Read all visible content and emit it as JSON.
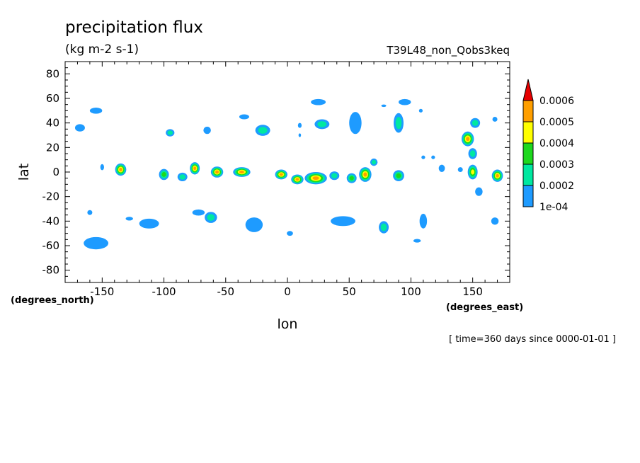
{
  "title": "precipitation flux",
  "units": "(kg m-2 s-1)",
  "experiment": "T39L48_non_Qobs3keq",
  "time_note": "[ time=360 days since 0000-01-01 ]",
  "chart_data": {
    "type": "heatmap",
    "xlabel": "lon",
    "ylabel": "lat",
    "x_units": "(degrees_east)",
    "y_units": "(degrees_north)",
    "xlim": [
      -180,
      180
    ],
    "ylim": [
      -90,
      90
    ],
    "x_ticks": [
      -150,
      -100,
      -50,
      0,
      50,
      100,
      150
    ],
    "x_tick_labels": [
      "-150",
      "-100",
      "-50",
      "0",
      "50",
      "100",
      "150"
    ],
    "y_ticks": [
      -80,
      -60,
      -40,
      -20,
      0,
      20,
      40,
      60,
      80
    ],
    "y_tick_labels": [
      "-80",
      "-60",
      "-40",
      "-20",
      "0",
      "20",
      "40",
      "60",
      "80"
    ],
    "colorbar": {
      "levels": [
        0.0001,
        0.0002,
        0.0003,
        0.0004,
        0.0005,
        0.0006
      ],
      "labels": [
        "1e-04",
        "0.0002",
        "0.0003",
        "0.0004",
        "0.0005",
        "0.0006"
      ],
      "colors": [
        "#1e9bff",
        "#00e8a0",
        "#1ed81e",
        "#ffff00",
        "#ff9f00",
        "#e60000"
      ]
    },
    "cells": [
      {
        "lon": -135,
        "lat": 2,
        "rx": 4.5,
        "ry": 5,
        "level": 5
      },
      {
        "lon": -75,
        "lat": 3,
        "rx": 4,
        "ry": 5,
        "level": 5
      },
      {
        "lon": -57,
        "lat": 0,
        "rx": 5,
        "ry": 4.5,
        "level": 5
      },
      {
        "lon": -37,
        "lat": 0,
        "rx": 7,
        "ry": 4,
        "level": 5
      },
      {
        "lon": -5,
        "lat": -2,
        "rx": 5,
        "ry": 4,
        "level": 5
      },
      {
        "lon": 8,
        "lat": -6,
        "rx": 5,
        "ry": 4,
        "level": 5
      },
      {
        "lon": 23,
        "lat": -5,
        "rx": 9,
        "ry": 5,
        "level": 5
      },
      {
        "lon": 63,
        "lat": -2,
        "rx": 5,
        "ry": 6,
        "level": 5
      },
      {
        "lon": 146,
        "lat": 27,
        "rx": 5,
        "ry": 6,
        "level": 5
      },
      {
        "lon": 150,
        "lat": 0,
        "rx": 4,
        "ry": 6,
        "level": 4
      },
      {
        "lon": 170,
        "lat": -3,
        "rx": 4.5,
        "ry": 5,
        "level": 5
      },
      {
        "lon": -100,
        "lat": -2,
        "rx": 4,
        "ry": 4.5,
        "level": 3
      },
      {
        "lon": -85,
        "lat": -4,
        "rx": 4,
        "ry": 3.5,
        "level": 2
      },
      {
        "lon": 38,
        "lat": -3,
        "rx": 4,
        "ry": 3.5,
        "level": 2
      },
      {
        "lon": 52,
        "lat": -5,
        "rx": 4,
        "ry": 4,
        "level": 3
      },
      {
        "lon": 90,
        "lat": -3,
        "rx": 4.5,
        "ry": 4.5,
        "level": 3
      },
      {
        "lon": 70,
        "lat": 8,
        "rx": 3,
        "ry": 3,
        "level": 2
      },
      {
        "lon": 125,
        "lat": 3,
        "rx": 2.5,
        "ry": 3,
        "level": 1
      },
      {
        "lon": 150,
        "lat": 15,
        "rx": 3.5,
        "ry": 4.5,
        "level": 2
      },
      {
        "lon": 152,
        "lat": 40,
        "rx": 4,
        "ry": 4,
        "level": 2
      },
      {
        "lon": 90,
        "lat": 40,
        "rx": 4,
        "ry": 8,
        "level": 2
      },
      {
        "lon": 55,
        "lat": 40,
        "rx": 5,
        "ry": 9,
        "level": 1
      },
      {
        "lon": 28,
        "lat": 39,
        "rx": 6,
        "ry": 4,
        "level": 2
      },
      {
        "lon": 25,
        "lat": 57,
        "rx": 6,
        "ry": 2.5,
        "level": 1
      },
      {
        "lon": -20,
        "lat": 34,
        "rx": 6,
        "ry": 4.5,
        "level": 2
      },
      {
        "lon": -95,
        "lat": 32,
        "rx": 3.5,
        "ry": 3,
        "level": 2
      },
      {
        "lon": -65,
        "lat": 34,
        "rx": 3,
        "ry": 3,
        "level": 1
      },
      {
        "lon": -155,
        "lat": 50,
        "rx": 5,
        "ry": 2.5,
        "level": 1
      },
      {
        "lon": -168,
        "lat": 36,
        "rx": 4,
        "ry": 3,
        "level": 1
      },
      {
        "lon": -35,
        "lat": 45,
        "rx": 4,
        "ry": 2,
        "level": 1
      },
      {
        "lon": 95,
        "lat": 57,
        "rx": 5,
        "ry": 2.5,
        "level": 1
      },
      {
        "lon": 168,
        "lat": 43,
        "rx": 2,
        "ry": 2,
        "level": 1
      },
      {
        "lon": 155,
        "lat": -16,
        "rx": 3,
        "ry": 3.5,
        "level": 1
      },
      {
        "lon": -155,
        "lat": -58,
        "rx": 10,
        "ry": 5,
        "level": 1
      },
      {
        "lon": -112,
        "lat": -42,
        "rx": 8,
        "ry": 4,
        "level": 1
      },
      {
        "lon": -62,
        "lat": -37,
        "rx": 5,
        "ry": 4.5,
        "level": 2
      },
      {
        "lon": -72,
        "lat": -33,
        "rx": 5,
        "ry": 2.5,
        "level": 1
      },
      {
        "lon": -27,
        "lat": -43,
        "rx": 7,
        "ry": 6,
        "level": 1
      },
      {
        "lon": 45,
        "lat": -40,
        "rx": 10,
        "ry": 4,
        "level": 1
      },
      {
        "lon": 78,
        "lat": -45,
        "rx": 4,
        "ry": 5,
        "level": 2
      },
      {
        "lon": 110,
        "lat": -40,
        "rx": 3,
        "ry": 6,
        "level": 1
      },
      {
        "lon": 168,
        "lat": -40,
        "rx": 3,
        "ry": 3,
        "level": 1
      },
      {
        "lon": 2,
        "lat": -50,
        "rx": 2.5,
        "ry": 2,
        "level": 1
      },
      {
        "lon": -128,
        "lat": -38,
        "rx": 3,
        "ry": 1.5,
        "level": 1
      },
      {
        "lon": -160,
        "lat": -33,
        "rx": 2,
        "ry": 2,
        "level": 1
      },
      {
        "lon": 105,
        "lat": -56,
        "rx": 3,
        "ry": 1.5,
        "level": 1
      },
      {
        "lon": -150,
        "lat": 4,
        "rx": 1.5,
        "ry": 2.5,
        "level": 1
      },
      {
        "lon": 140,
        "lat": 2,
        "rx": 2,
        "ry": 2,
        "level": 1
      },
      {
        "lon": 110,
        "lat": 12,
        "rx": 1.5,
        "ry": 1.5,
        "level": 1
      },
      {
        "lon": 118,
        "lat": 12,
        "rx": 1.5,
        "ry": 1.5,
        "level": 1
      },
      {
        "lon": 10,
        "lat": 38,
        "rx": 1.5,
        "ry": 2,
        "level": 1
      },
      {
        "lon": 10,
        "lat": 30,
        "rx": 1,
        "ry": 1.5,
        "level": 1
      },
      {
        "lon": 78,
        "lat": 54,
        "rx": 2,
        "ry": 1,
        "level": 1
      },
      {
        "lon": 108,
        "lat": 50,
        "rx": 1.5,
        "ry": 1.5,
        "level": 1
      }
    ]
  }
}
